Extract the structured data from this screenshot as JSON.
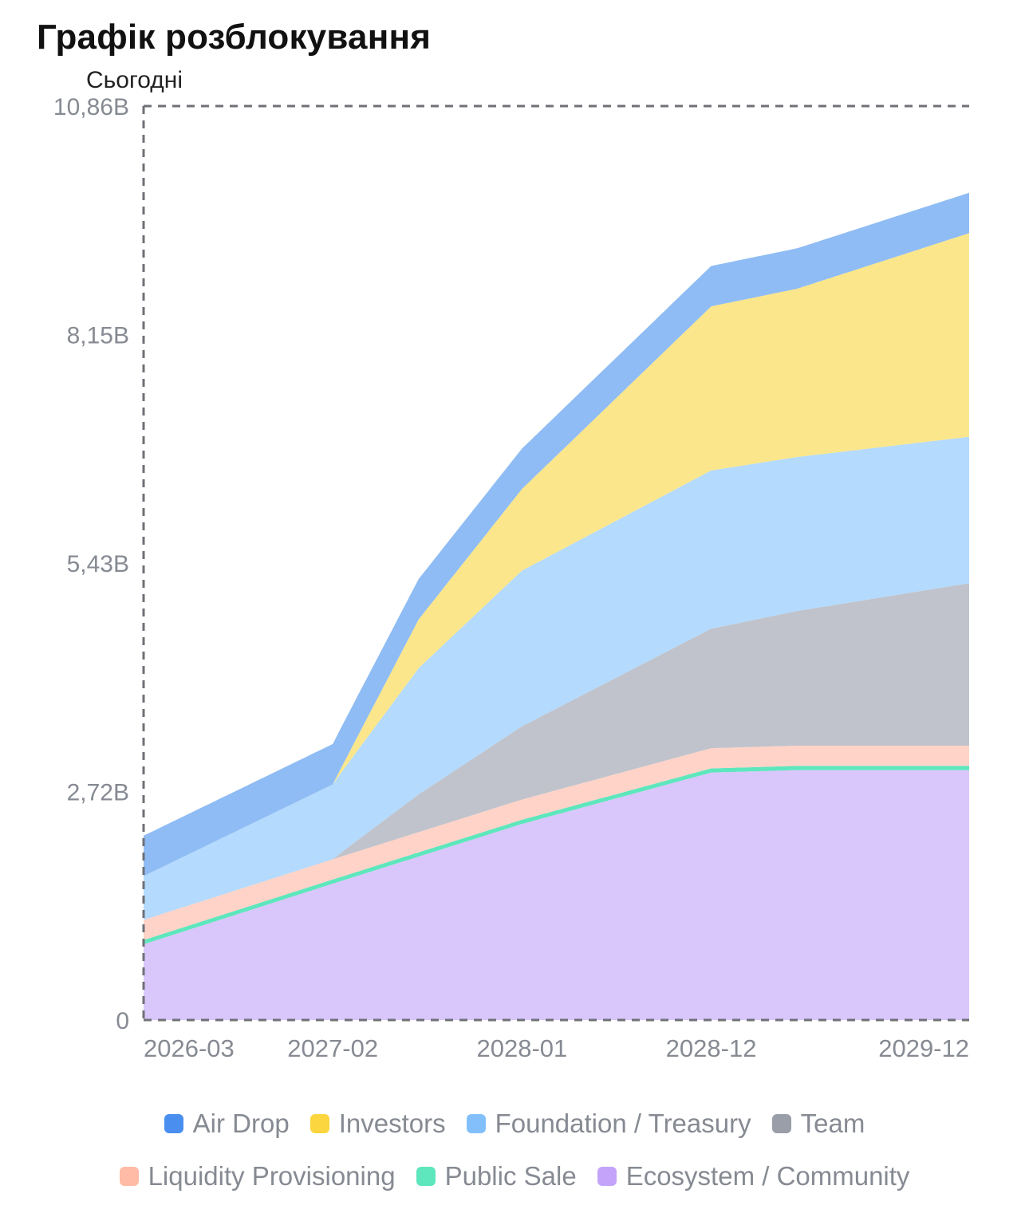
{
  "header": {
    "title": "Графік розблокування",
    "today_label": "Сьогодні"
  },
  "chart_data": {
    "type": "area",
    "stacked": true,
    "title": "Графік розблокування",
    "y_ticks": [
      "0",
      "2,72B",
      "5,43B",
      "8,15B",
      "10,86B"
    ],
    "ylim": [
      0,
      10.86
    ],
    "x_ticks": [
      "2026-03",
      "2027-02",
      "2028-01",
      "2028-12",
      "2029-12"
    ],
    "x_range_months": [
      0,
      48
    ],
    "x_tick_months": [
      0,
      11,
      22,
      33,
      45
    ],
    "grid": false,
    "legend_position": "bottom",
    "series": [
      {
        "name": "Ecosystem / Community",
        "color": "#d9c6fb",
        "points": [
          [
            0,
            0.9
          ],
          [
            11,
            1.62
          ],
          [
            22,
            2.33
          ],
          [
            33,
            2.94
          ],
          [
            38,
            2.97
          ],
          [
            48,
            2.97
          ]
        ]
      },
      {
        "name": "Public Sale",
        "color": "#5ee6bd",
        "points": [
          [
            0,
            0.05
          ],
          [
            48,
            0.05
          ]
        ]
      },
      {
        "name": "Liquidity Provisioning",
        "color": "#ffd3c7",
        "points": [
          [
            0,
            0.24
          ],
          [
            48,
            0.24
          ]
        ]
      },
      {
        "name": "Team",
        "color": "#c0c3cb",
        "points": [
          [
            0,
            0
          ],
          [
            11,
            0
          ],
          [
            11.5,
            0.05
          ],
          [
            16,
            0.45
          ],
          [
            22,
            0.87
          ],
          [
            33,
            1.42
          ],
          [
            38,
            1.6
          ],
          [
            48,
            1.93
          ]
        ]
      },
      {
        "name": "Foundation / Treasury",
        "color": "#b4dafd",
        "points": [
          [
            0,
            0.52
          ],
          [
            11,
            0.89
          ],
          [
            16,
            1.5
          ],
          [
            22,
            1.85
          ],
          [
            33,
            1.88
          ],
          [
            38,
            1.83
          ],
          [
            48,
            1.74
          ]
        ]
      },
      {
        "name": "Investors",
        "color": "#fbe68c",
        "points": [
          [
            0,
            0
          ],
          [
            11,
            0
          ],
          [
            16,
            0.58
          ],
          [
            22,
            0.97
          ],
          [
            33,
            1.95
          ],
          [
            38,
            2.0
          ],
          [
            48,
            2.42
          ]
        ]
      },
      {
        "name": "Air Drop",
        "color": "#8fbcf4",
        "points": [
          [
            0,
            0.48
          ],
          [
            48,
            0.48
          ]
        ]
      }
    ]
  },
  "legend": {
    "row1": [
      {
        "label": "Air Drop",
        "color": "#4a8ff0"
      },
      {
        "label": "Investors",
        "color": "#fbd63e"
      },
      {
        "label": "Foundation / Treasury",
        "color": "#83c0fb"
      },
      {
        "label": "Team",
        "color": "#9a9ea8"
      }
    ],
    "row2": [
      {
        "label": "Liquidity Provisioning",
        "color": "#ffbba6"
      },
      {
        "label": "Public Sale",
        "color": "#5ee6bd"
      },
      {
        "label": "Ecosystem / Community",
        "color": "#c3a4fa"
      }
    ]
  }
}
